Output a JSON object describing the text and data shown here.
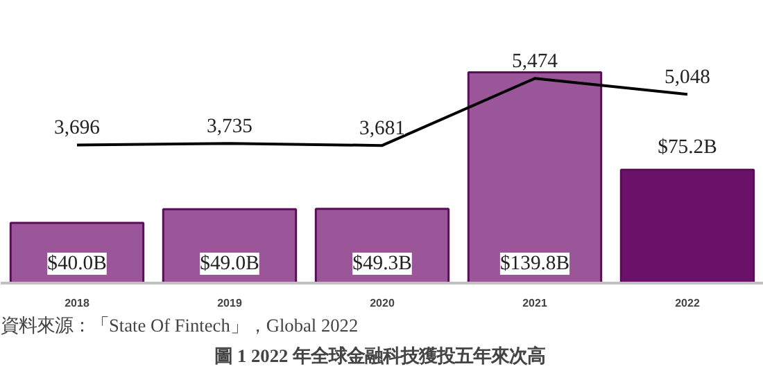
{
  "chart_data": {
    "type": "bar",
    "title": "圖 1  2022 年全球金融科技獲投五年來次高",
    "annotations": [
      "資料來源：「State Of Fintech」，Global 2022"
    ],
    "categories": [
      "2018",
      "2019",
      "2020",
      "2021",
      "2022"
    ],
    "values": [
      40.0,
      49.0,
      49.3,
      139.8,
      75.2
    ],
    "colors": [
      "#9b5599",
      "#9b5599",
      "#9b5599",
      "#9b5599",
      "#6c1169"
    ],
    "value_labels": [
      "$40.0B",
      "$49.0B",
      "$49.3B",
      "$139.8B",
      "$75.2B"
    ],
    "series": [
      {
        "type": "line",
        "axis": "y2",
        "color": "#000000",
        "values": [
          3696,
          3735,
          3681,
          5474,
          5048
        ],
        "value_labels": [
          "3,696",
          "3,735",
          "3,681",
          "5,474",
          "5,048"
        ]
      }
    ],
    "grid": false,
    "tick_labels": "x"
  }
}
